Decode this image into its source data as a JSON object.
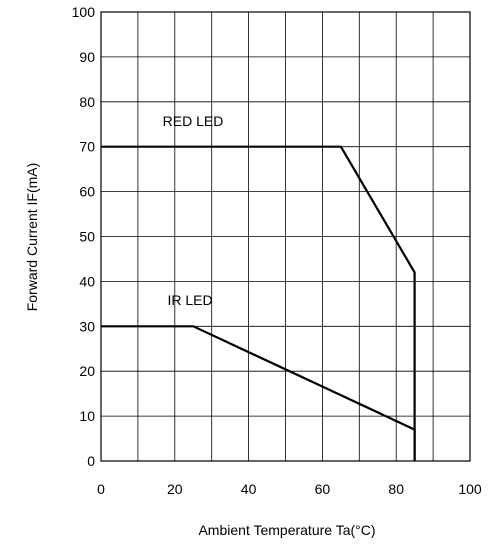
{
  "chart_data": {
    "type": "line",
    "xlabel": "Ambient Temperature Ta(°C)",
    "ylabel": "Forward Current IF(mA)",
    "xlim": [
      0,
      100
    ],
    "ylim": [
      0,
      100
    ],
    "xticks": [
      0,
      20,
      40,
      60,
      80,
      100
    ],
    "yticks": [
      0,
      10,
      20,
      30,
      40,
      50,
      60,
      70,
      80,
      90,
      100
    ],
    "xtick_labels": [
      "0",
      "20",
      "40",
      "60",
      "80",
      "100"
    ],
    "ytick_labels": [
      "0",
      "10",
      "20",
      "30",
      "40",
      "50",
      "60",
      "70",
      "80",
      "90",
      "100"
    ],
    "grid": true,
    "x_grid_step": 10,
    "series": [
      {
        "name": "RED LED",
        "points": [
          [
            0,
            70
          ],
          [
            65,
            70
          ],
          [
            85,
            42
          ],
          [
            85,
            0
          ]
        ]
      },
      {
        "name": "IR LED",
        "points": [
          [
            0,
            30
          ],
          [
            25,
            30
          ],
          [
            85,
            7
          ],
          [
            85,
            0
          ]
        ]
      }
    ]
  }
}
